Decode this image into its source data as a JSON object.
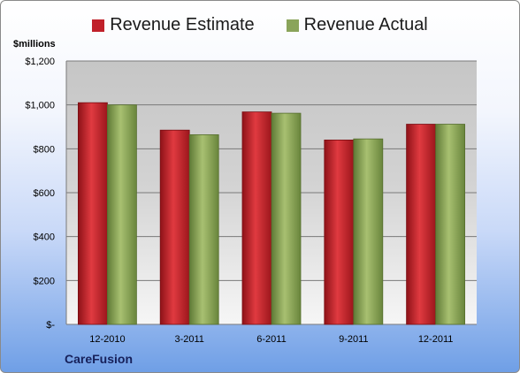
{
  "chart_data": {
    "type": "bar",
    "categories": [
      "12-2010",
      "3-2011",
      "6-2011",
      "9-2011",
      "12-2011"
    ],
    "series": [
      {
        "name": "Revenue Estimate",
        "values": [
          1010,
          885,
          968,
          840,
          912
        ],
        "color": "#c0202a"
      },
      {
        "name": "Revenue Actual",
        "values": [
          1000,
          864,
          962,
          845,
          912
        ],
        "color": "#8aa45a"
      }
    ],
    "ylabel": "$millions",
    "ylim": [
      0,
      1200
    ],
    "yticks": [
      0,
      200,
      400,
      600,
      800,
      1000,
      1200
    ],
    "ytick_labels": [
      "$-",
      "$200",
      "$400",
      "$600",
      "$800",
      "$1,000",
      "$1,200"
    ],
    "grid": true,
    "legend_position": "top"
  },
  "company": "CareFusion"
}
